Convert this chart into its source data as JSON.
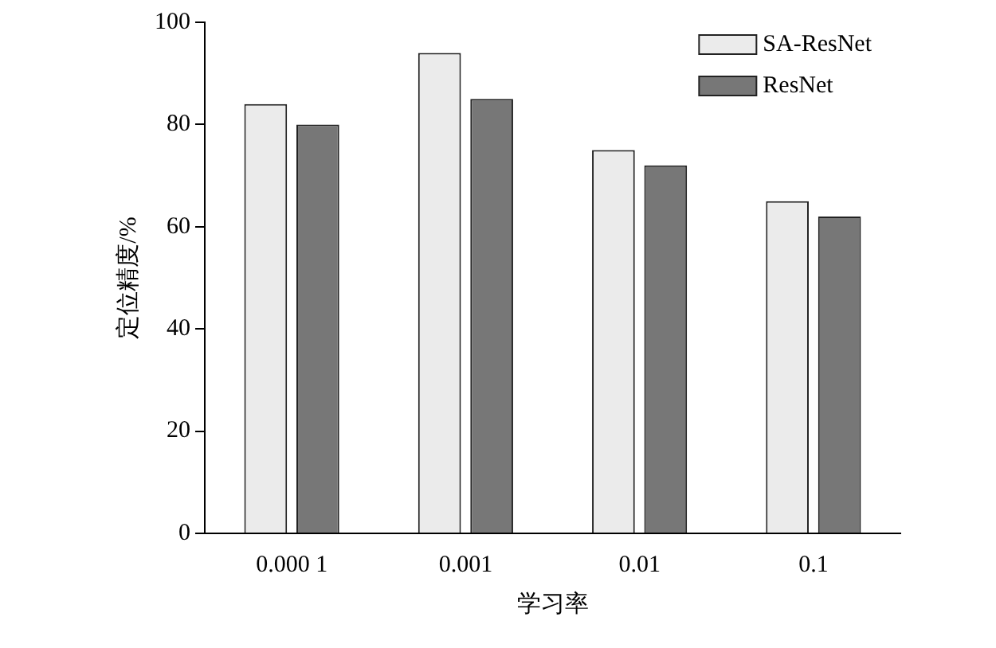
{
  "chart_data": {
    "type": "bar",
    "xlabel": "学习率",
    "ylabel": "定位精度/%",
    "categories": [
      "0.000 1",
      "0.001",
      "0.01",
      "0.1"
    ],
    "series": [
      {
        "name": "SA-ResNet",
        "color": "#ebebeb",
        "values": [
          84,
          94,
          75,
          65
        ]
      },
      {
        "name": "ResNet",
        "color": "#777777",
        "values": [
          80,
          85,
          72,
          62
        ]
      }
    ],
    "ylim": [
      0,
      100
    ],
    "yticks": [
      0,
      20,
      40,
      60,
      80,
      100
    ],
    "grid": false,
    "legend": "top right"
  }
}
